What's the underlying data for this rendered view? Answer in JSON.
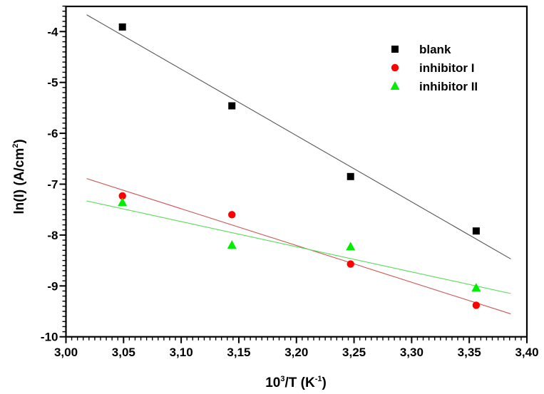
{
  "chart_data": {
    "type": "scatter",
    "title": "",
    "xlabel": "10³/T (K⁻¹)",
    "xlabel_parts": {
      "base": "10",
      "sup": "3",
      "mid": "/T (K",
      "sup2": "-1",
      "end": ")"
    },
    "ylabel": "ln(I)  (A/cm²)",
    "ylabel_parts": {
      "base": "ln(I)  (A/cm",
      "sup": "2",
      "end": ")"
    },
    "xlim": [
      3.0,
      3.4
    ],
    "ylim": [
      -10,
      -3.5
    ],
    "x_ticks": [
      3.0,
      3.05,
      3.1,
      3.15,
      3.2,
      3.25,
      3.3,
      3.35,
      3.4
    ],
    "x_tick_labels": [
      "3,00",
      "3,05",
      "3,10",
      "3,15",
      "3,20",
      "3,25",
      "3,30",
      "3,35",
      "3,40"
    ],
    "x_minor_step": 0.005,
    "y_ticks": [
      -10,
      -9,
      -8,
      -7,
      -6,
      -5,
      -4
    ],
    "y_tick_labels": [
      "-10",
      "-9",
      "-8",
      "-7",
      "-6",
      "-5",
      "-4"
    ],
    "y_minor_step": 0.1,
    "grid": false,
    "legend_position": "top-right",
    "series": [
      {
        "name": "blank",
        "marker": "square",
        "color": "#000000",
        "line_color": "#555555",
        "x": [
          3.049,
          3.144,
          3.247,
          3.356
        ],
        "y": [
          -3.91,
          -5.46,
          -6.85,
          -7.92
        ],
        "fit": {
          "x": [
            3.018,
            3.386
          ],
          "y": [
            -3.67,
            -8.47
          ]
        }
      },
      {
        "name": "inhibitor I",
        "marker": "circle",
        "color": "#ff0000",
        "line_color": "#cc5555",
        "x": [
          3.049,
          3.144,
          3.247,
          3.356
        ],
        "y": [
          -7.23,
          -7.6,
          -8.57,
          -9.38
        ],
        "fit": {
          "x": [
            3.018,
            3.386
          ],
          "y": [
            -6.89,
            -9.55
          ]
        }
      },
      {
        "name": "inhibitor II",
        "marker": "triangle",
        "color": "#00ee00",
        "line_color": "#55dd55",
        "x": [
          3.049,
          3.144,
          3.247,
          3.356
        ],
        "y": [
          -7.36,
          -8.2,
          -8.23,
          -9.04
        ],
        "fit": {
          "x": [
            3.018,
            3.386
          ],
          "y": [
            -7.33,
            -9.15
          ]
        }
      }
    ]
  }
}
